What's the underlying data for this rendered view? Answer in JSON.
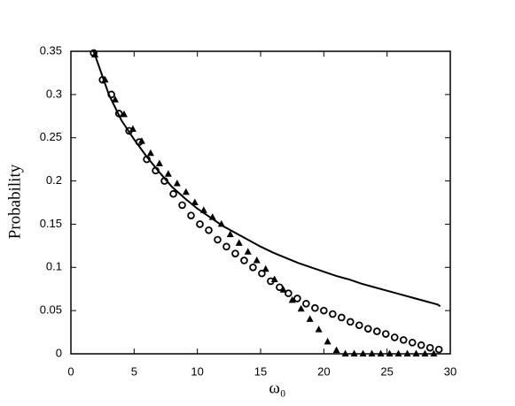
{
  "chart_data": {
    "type": "scatter",
    "x_label": "ω₀",
    "y_label": "Probability",
    "xlim": [
      0,
      30
    ],
    "xticks": [
      0,
      5,
      10,
      15,
      20,
      25,
      30
    ],
    "ylim": [
      0,
      0.35
    ],
    "yticks": [
      0,
      0.05,
      0.1,
      0.15,
      0.2,
      0.25,
      0.3,
      0.35
    ],
    "series": [
      {
        "marker": "line",
        "color": "#000000",
        "x": [
          1.8,
          3,
          4,
          5,
          6,
          7,
          8,
          9,
          10,
          11,
          12,
          13,
          14,
          15,
          16,
          17,
          18,
          19,
          20,
          21,
          22,
          23,
          24,
          25,
          26,
          27,
          28,
          29,
          29.2
        ],
        "values": [
          0.35,
          0.3,
          0.27,
          0.248,
          0.228,
          0.21,
          0.193,
          0.18,
          0.168,
          0.158,
          0.148,
          0.14,
          0.132,
          0.124,
          0.117,
          0.111,
          0.105,
          0.1,
          0.095,
          0.09,
          0.086,
          0.081,
          0.077,
          0.073,
          0.069,
          0.065,
          0.061,
          0.057,
          0.055
        ]
      },
      {
        "marker": "circle",
        "color": "#000000",
        "x": [
          1.8,
          2.5,
          3.2,
          3.8,
          4.6,
          5.4,
          6.0,
          6.7,
          7.4,
          8.1,
          8.8,
          9.5,
          10.2,
          10.9,
          11.6,
          12.3,
          13.0,
          13.7,
          14.4,
          15.1,
          15.8,
          16.5,
          17.2,
          17.9,
          18.6,
          19.3,
          20.0,
          20.7,
          21.4,
          22.1,
          22.8,
          23.5,
          24.2,
          24.9,
          25.6,
          26.3,
          27.0,
          27.7,
          28.4,
          29.1
        ],
        "values": [
          0.348,
          0.317,
          0.3,
          0.278,
          0.258,
          0.245,
          0.225,
          0.212,
          0.2,
          0.185,
          0.172,
          0.16,
          0.15,
          0.143,
          0.132,
          0.124,
          0.116,
          0.108,
          0.1,
          0.093,
          0.084,
          0.077,
          0.07,
          0.064,
          0.058,
          0.053,
          0.05,
          0.046,
          0.042,
          0.037,
          0.033,
          0.029,
          0.026,
          0.023,
          0.019,
          0.016,
          0.013,
          0.01,
          0.007,
          0.005
        ]
      },
      {
        "marker": "triangle",
        "color": "#000000",
        "x": [
          1.9,
          2.7,
          3.5,
          4.2,
          4.9,
          5.6,
          6.3,
          7.0,
          7.7,
          8.4,
          9.1,
          9.8,
          10.5,
          11.2,
          11.9,
          12.6,
          13.3,
          14.0,
          14.7,
          15.4,
          16.1,
          16.8,
          17.5,
          18.2,
          18.9,
          19.6,
          20.3,
          21.0,
          21.7,
          22.4,
          23.1,
          23.8,
          24.5,
          25.2,
          25.9,
          26.6,
          27.3,
          28.0,
          28.7
        ],
        "values": [
          0.346,
          0.317,
          0.294,
          0.277,
          0.26,
          0.246,
          0.232,
          0.22,
          0.208,
          0.197,
          0.187,
          0.175,
          0.166,
          0.158,
          0.15,
          0.138,
          0.128,
          0.118,
          0.108,
          0.098,
          0.086,
          0.074,
          0.062,
          0.052,
          0.04,
          0.028,
          0.014,
          0.004,
          0,
          0,
          0,
          0,
          0,
          0,
          0,
          0,
          0,
          0,
          0
        ]
      }
    ]
  }
}
